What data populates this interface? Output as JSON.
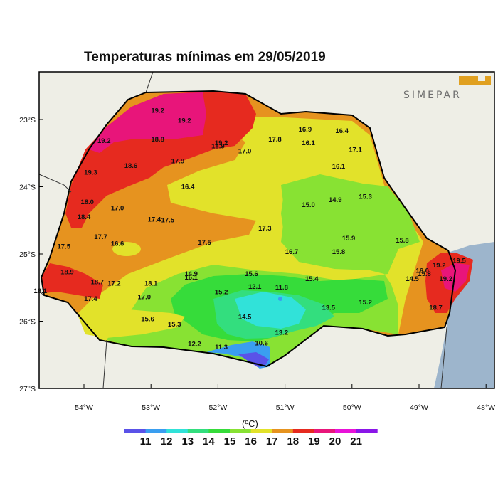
{
  "title": "Temperaturas mínimas em 29/05/2019",
  "logo": {
    "text": "SIMEPAR",
    "color": "#e0a020"
  },
  "colorbar": {
    "unit": "(ºC)",
    "labels": [
      "11",
      "12",
      "13",
      "14",
      "15",
      "16",
      "17",
      "18",
      "19",
      "20",
      "21"
    ],
    "colors": [
      "#5a52e8",
      "#3a9ef0",
      "#31e2d9",
      "#33de7e",
      "#36dc3a",
      "#88e233",
      "#e2e22a",
      "#e6931f",
      "#e62a1f",
      "#e8157a",
      "#e812d8",
      "#8a16e8"
    ]
  },
  "axes": {
    "lat_ticks": [
      "23°S",
      "24°S",
      "25°S",
      "26°S",
      "27°S"
    ],
    "lon_ticks": [
      "54°W",
      "53°W",
      "52°W",
      "51°W",
      "50°W",
      "49°W",
      "48°W"
    ]
  },
  "stations": [
    {
      "value": "19.2",
      "lon": -52.9,
      "lat": -22.9
    },
    {
      "value": "19.2",
      "lon": -52.5,
      "lat": -23.05
    },
    {
      "value": "19.2",
      "lon": -53.7,
      "lat": -23.35
    },
    {
      "value": "18.8",
      "lon": -52.9,
      "lat": -23.33
    },
    {
      "value": "19.2",
      "lon": -51.95,
      "lat": -23.38
    },
    {
      "value": "18.9",
      "lon": -52.0,
      "lat": -23.43
    },
    {
      "value": "17.0",
      "lon": -51.6,
      "lat": -23.5
    },
    {
      "value": "17.8",
      "lon": -51.15,
      "lat": -23.33
    },
    {
      "value": "16.9",
      "lon": -50.7,
      "lat": -23.18
    },
    {
      "value": "16.4",
      "lon": -50.15,
      "lat": -23.2
    },
    {
      "value": "16.1",
      "lon": -50.65,
      "lat": -23.38
    },
    {
      "value": "17.1",
      "lon": -49.95,
      "lat": -23.48
    },
    {
      "value": "16.1",
      "lon": -50.2,
      "lat": -23.73
    },
    {
      "value": "18.6",
      "lon": -53.3,
      "lat": -23.72
    },
    {
      "value": "17.9",
      "lon": -52.6,
      "lat": -23.65
    },
    {
      "value": "19.3",
      "lon": -53.9,
      "lat": -23.82
    },
    {
      "value": "16.4",
      "lon": -52.45,
      "lat": -24.03
    },
    {
      "value": "15.3",
      "lon": -49.8,
      "lat": -24.18
    },
    {
      "value": "14.9",
      "lon": -50.25,
      "lat": -24.23
    },
    {
      "value": "15.0",
      "lon": -50.65,
      "lat": -24.3
    },
    {
      "value": "18.0",
      "lon": -53.95,
      "lat": -24.26
    },
    {
      "value": "17.0",
      "lon": -53.5,
      "lat": -24.35
    },
    {
      "value": "18.4",
      "lon": -54.0,
      "lat": -24.48
    },
    {
      "value": "17.4",
      "lon": -52.95,
      "lat": -24.52
    },
    {
      "value": "17.5",
      "lon": -52.75,
      "lat": -24.53
    },
    {
      "value": "17.3",
      "lon": -51.3,
      "lat": -24.65
    },
    {
      "value": "17.7",
      "lon": -53.75,
      "lat": -24.78
    },
    {
      "value": "16.6",
      "lon": -53.5,
      "lat": -24.88
    },
    {
      "value": "17.5",
      "lon": -52.2,
      "lat": -24.86
    },
    {
      "value": "15.9",
      "lon": -50.05,
      "lat": -24.8
    },
    {
      "value": "15.8",
      "lon": -49.25,
      "lat": -24.83
    },
    {
      "value": "17.5",
      "lon": -54.3,
      "lat": -24.92
    },
    {
      "value": "16.7",
      "lon": -50.9,
      "lat": -25.0
    },
    {
      "value": "15.8",
      "lon": -50.2,
      "lat": -25.0
    },
    {
      "value": "18.9",
      "lon": -54.25,
      "lat": -25.3
    },
    {
      "value": "14.9",
      "lon": -52.4,
      "lat": -25.33
    },
    {
      "value": "16.1",
      "lon": -52.4,
      "lat": -25.38
    },
    {
      "value": "15.6",
      "lon": -51.5,
      "lat": -25.33
    },
    {
      "value": "15.4",
      "lon": -50.6,
      "lat": -25.4
    },
    {
      "value": "16.0",
      "lon": -48.95,
      "lat": -25.28
    },
    {
      "value": "15.8",
      "lon": -48.92,
      "lat": -25.33
    },
    {
      "value": "14.5",
      "lon": -49.1,
      "lat": -25.4
    },
    {
      "value": "19.2",
      "lon": -48.7,
      "lat": -25.2
    },
    {
      "value": "19.5",
      "lon": -48.4,
      "lat": -25.13
    },
    {
      "value": "19.2",
      "lon": -48.6,
      "lat": -25.4
    },
    {
      "value": "18.7",
      "lon": -53.8,
      "lat": -25.45
    },
    {
      "value": "17.2",
      "lon": -53.55,
      "lat": -25.47
    },
    {
      "value": "18.1",
      "lon": -53.0,
      "lat": -25.47
    },
    {
      "value": "18.1",
      "lon": -54.65,
      "lat": -25.58
    },
    {
      "value": "15.2",
      "lon": -51.95,
      "lat": -25.6
    },
    {
      "value": "12.1",
      "lon": -51.45,
      "lat": -25.52
    },
    {
      "value": "11.8",
      "lon": -51.05,
      "lat": -25.53
    },
    {
      "value": "15.2",
      "lon": -49.8,
      "lat": -25.75
    },
    {
      "value": "17.4",
      "lon": -53.9,
      "lat": -25.7
    },
    {
      "value": "17.0",
      "lon": -53.1,
      "lat": -25.67
    },
    {
      "value": "13.5",
      "lon": -50.35,
      "lat": -25.83
    },
    {
      "value": "18.7",
      "lon": -48.75,
      "lat": -25.83
    },
    {
      "value": "14.5",
      "lon": -51.6,
      "lat": -25.97
    },
    {
      "value": "15.6",
      "lon": -53.05,
      "lat": -26.0
    },
    {
      "value": "15.3",
      "lon": -52.65,
      "lat": -26.08
    },
    {
      "value": "13.2",
      "lon": -51.05,
      "lat": -26.2
    },
    {
      "value": "12.2",
      "lon": -52.35,
      "lat": -26.37
    },
    {
      "value": "11.3",
      "lon": -51.95,
      "lat": -26.42
    },
    {
      "value": "10.6",
      "lon": -51.35,
      "lat": -26.36
    }
  ]
}
